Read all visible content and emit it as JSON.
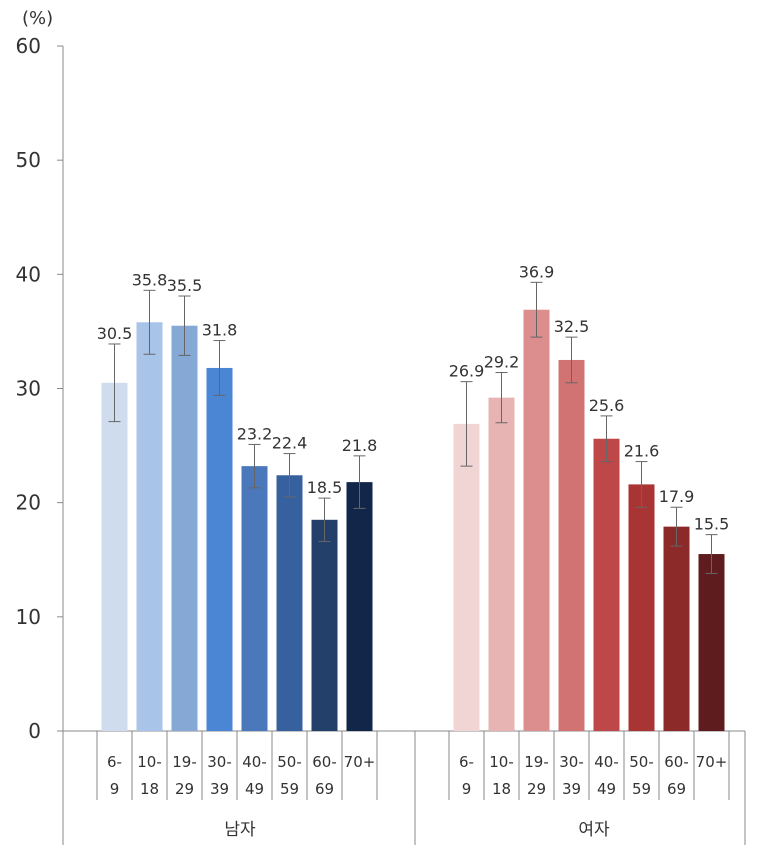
{
  "chart_data": {
    "type": "bar",
    "y_unit": "(%)",
    "ylim": [
      0,
      60
    ],
    "y_ticks": [
      "0",
      "10",
      "20",
      "30",
      "40",
      "50",
      "60"
    ],
    "grid": false,
    "groups": [
      {
        "name": "남자",
        "categories": [
          [
            "6-",
            "9"
          ],
          [
            "10-",
            "18"
          ],
          [
            "19-",
            "29"
          ],
          [
            "30-",
            "39"
          ],
          [
            "40-",
            "49"
          ],
          [
            "50-",
            "59"
          ],
          [
            "60-",
            "69"
          ],
          [
            "70+",
            ""
          ]
        ],
        "values": [
          30.5,
          35.8,
          35.5,
          31.8,
          23.2,
          22.4,
          18.5,
          21.8
        ],
        "labels": [
          "30.5",
          "35.8",
          "35.5",
          "31.8",
          "23.2",
          "22.4",
          "18.5",
          "21.8"
        ],
        "error_low": [
          27.1,
          33.0,
          32.9,
          29.4,
          21.3,
          20.5,
          16.6,
          19.5
        ],
        "error_high": [
          33.9,
          38.6,
          38.1,
          34.2,
          25.1,
          24.3,
          20.4,
          24.1
        ],
        "colors": [
          "#cfdcee",
          "#a9c4e9",
          "#85a8d5",
          "#4b86d4",
          "#4a78bb",
          "#37609e",
          "#23406b",
          "#12264a"
        ]
      },
      {
        "name": "여자",
        "categories": [
          [
            "6-",
            "9"
          ],
          [
            "10-",
            "18"
          ],
          [
            "19-",
            "29"
          ],
          [
            "30-",
            "39"
          ],
          [
            "40-",
            "49"
          ],
          [
            "50-",
            "59"
          ],
          [
            "60-",
            "69"
          ],
          [
            "70+",
            ""
          ]
        ],
        "values": [
          26.9,
          29.2,
          36.9,
          32.5,
          25.6,
          21.6,
          17.9,
          15.5
        ],
        "labels": [
          "26.9",
          "29.2",
          "36.9",
          "32.5",
          "25.6",
          "21.6",
          "17.9",
          "15.5"
        ],
        "error_low": [
          23.2,
          27.0,
          34.5,
          30.5,
          23.6,
          19.6,
          16.2,
          13.8
        ],
        "error_high": [
          30.6,
          31.4,
          39.3,
          34.5,
          27.6,
          23.6,
          19.6,
          17.2
        ],
        "colors": [
          "#f1d5d5",
          "#e8b3b3",
          "#dc8d8d",
          "#d27373",
          "#be4747",
          "#a93434",
          "#8c2a2a",
          "#5e1c1f"
        ]
      }
    ]
  }
}
